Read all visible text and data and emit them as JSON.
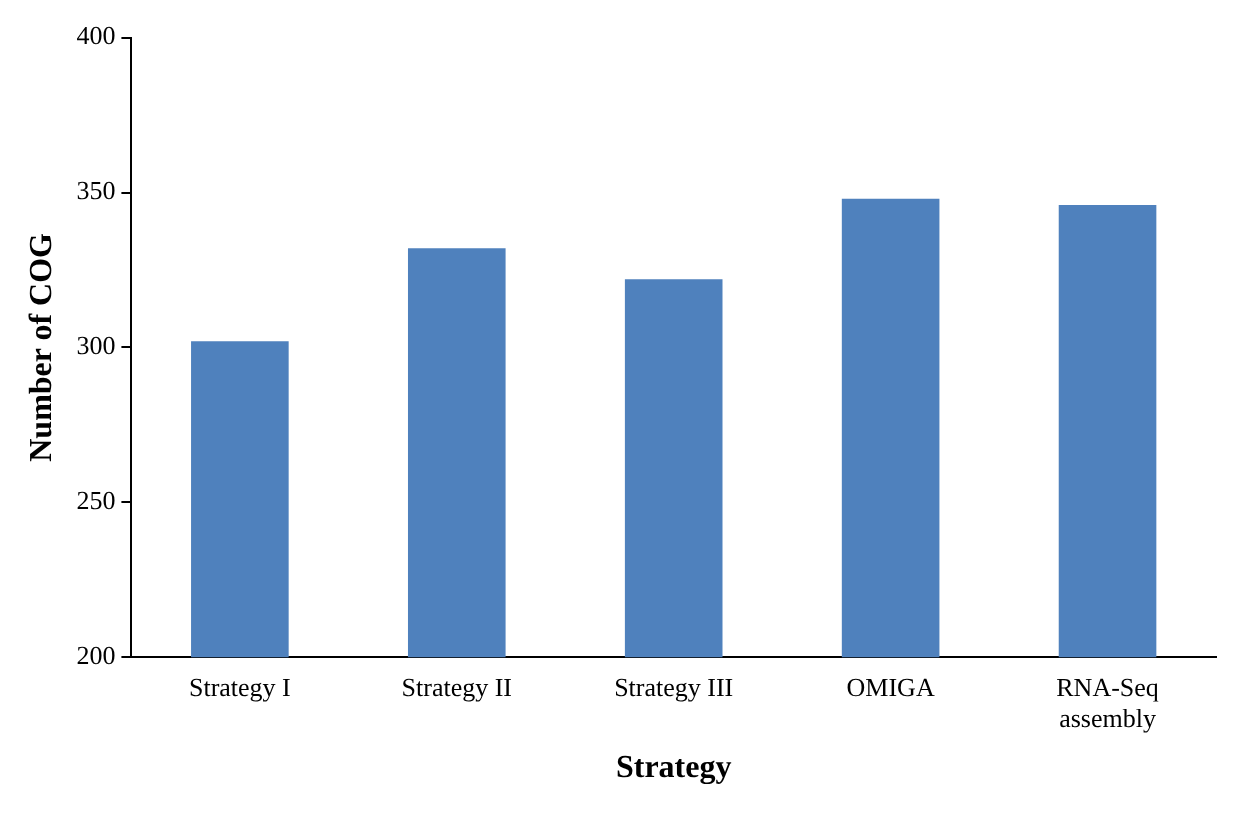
{
  "chart_data": {
    "type": "bar",
    "xlabel": "Strategy",
    "ylabel": "Number of COG",
    "categories": [
      "Strategy I",
      "Strategy II",
      "Strategy III",
      "OMIGA",
      "RNA-Seq assembly"
    ],
    "values": [
      302,
      332,
      322,
      348,
      346
    ],
    "color": "#4f81bd",
    "ylim": [
      200,
      400
    ],
    "yticks": [
      200,
      250,
      300,
      350,
      400
    ],
    "grid": false
  }
}
